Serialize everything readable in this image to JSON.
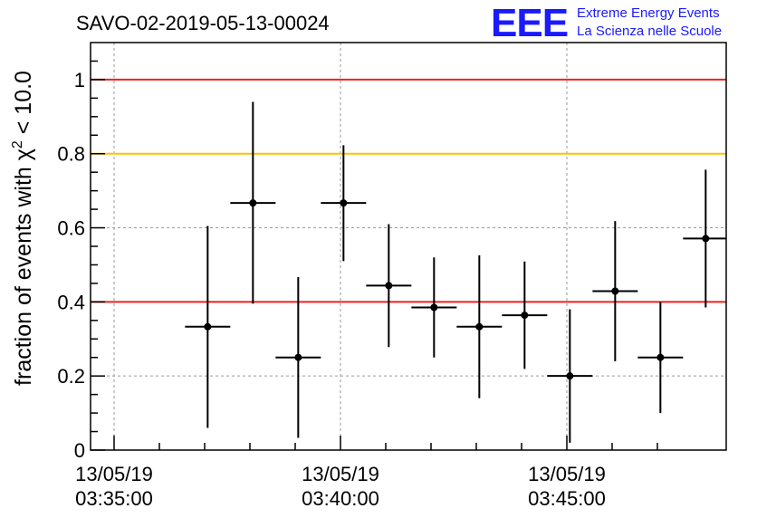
{
  "chart_data": {
    "type": "scatter",
    "title": "SAVO-02-2019-05-13-00024",
    "ylabel_prefix": "fraction of events with χ",
    "ylabel_sup": "2",
    "ylabel_suffix": " < 10.0",
    "xlabel": "",
    "ylim": [
      0,
      1.1
    ],
    "x_time_range": [
      "03:34:00",
      "03:47:30"
    ],
    "y_ticks": [
      "0",
      "0.2",
      "0.4",
      "0.6",
      "0.8",
      "1"
    ],
    "x_ticks": [
      {
        "time": "03:35:00",
        "date": "13/05/19",
        "clock": "03:35:00"
      },
      {
        "time": "03:40:00",
        "date": "13/05/19",
        "clock": "03:40:00"
      },
      {
        "time": "03:45:00",
        "date": "13/05/19",
        "clock": "03:45:00"
      }
    ],
    "reference_lines": [
      {
        "y": 1.0,
        "color": "#e8231e"
      },
      {
        "y": 0.8,
        "color": "#ffc000"
      },
      {
        "y": 0.4,
        "color": "#e8231e"
      }
    ],
    "grid": true,
    "points": [
      {
        "x": "03:37:04",
        "x_err_s": 30,
        "y": 0.333,
        "y_lo": 0.06,
        "y_hi": 0.605
      },
      {
        "x": "03:38:04",
        "x_err_s": 30,
        "y": 0.667,
        "y_lo": 0.395,
        "y_hi": 0.94
      },
      {
        "x": "03:39:04",
        "x_err_s": 30,
        "y": 0.25,
        "y_lo": 0.033,
        "y_hi": 0.467
      },
      {
        "x": "03:40:04",
        "x_err_s": 30,
        "y": 0.667,
        "y_lo": 0.51,
        "y_hi": 0.823
      },
      {
        "x": "03:41:04",
        "x_err_s": 30,
        "y": 0.444,
        "y_lo": 0.278,
        "y_hi": 0.61
      },
      {
        "x": "03:42:04",
        "x_err_s": 30,
        "y": 0.385,
        "y_lo": 0.25,
        "y_hi": 0.52
      },
      {
        "x": "03:43:04",
        "x_err_s": 30,
        "y": 0.333,
        "y_lo": 0.14,
        "y_hi": 0.526
      },
      {
        "x": "03:44:04",
        "x_err_s": 30,
        "y": 0.364,
        "y_lo": 0.219,
        "y_hi": 0.509
      },
      {
        "x": "03:45:04",
        "x_err_s": 30,
        "y": 0.2,
        "y_lo": 0.02,
        "y_hi": 0.38
      },
      {
        "x": "03:46:04",
        "x_err_s": 30,
        "y": 0.429,
        "y_lo": 0.24,
        "y_hi": 0.618
      },
      {
        "x": "03:47:04",
        "x_err_s": 30,
        "y": 0.25,
        "y_lo": 0.1,
        "y_hi": 0.4
      },
      {
        "x": "03:48:04",
        "x_err_s": 30,
        "y": 0.571,
        "y_lo": 0.385,
        "y_hi": 0.757
      }
    ],
    "marker_color": "#000000",
    "reference_line_colors": "red / yellow"
  },
  "logo": {
    "mark": "EEE",
    "line1": "Extreme Energy Events",
    "line2": "La Scienza nelle Scuole",
    "color": "#1a1aff"
  }
}
